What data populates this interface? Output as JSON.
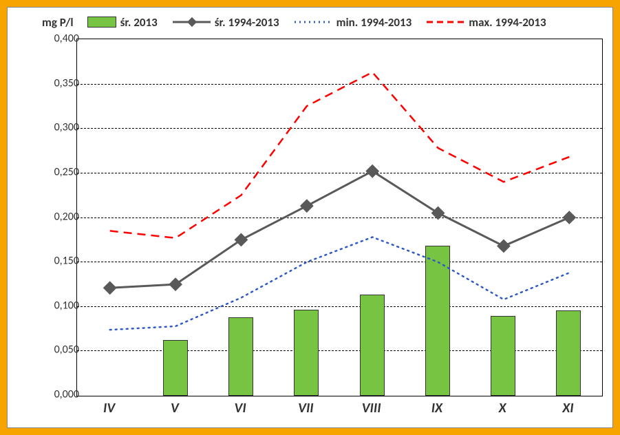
{
  "chart": {
    "type": "bar+lines",
    "background_color": "#ffffff",
    "frame_color": "#f7a400",
    "plot_border_color": "#000000",
    "grid_color": "#000000",
    "ylabel": "mg P/l",
    "ylabel_fontsize": 17,
    "ylim": [
      0.0,
      0.4
    ],
    "ytick_step": 0.05,
    "yticks": [
      "0,000",
      "0,050",
      "0,100",
      "0,150",
      "0,200",
      "0,250",
      "0,300",
      "0,350",
      "0,400"
    ],
    "categories": [
      "IV",
      "V",
      "VI",
      "VII",
      "VIII",
      "IX",
      "X",
      "XI"
    ],
    "xtick_fontsize": 20,
    "ytick_fontsize": 16,
    "legend": {
      "items": [
        {
          "key": "bar2013",
          "label": "śr. 2013",
          "type": "bar",
          "color": "#77c342"
        },
        {
          "key": "avg",
          "label": "śr. 1994-2013",
          "type": "line-marker",
          "color": "#595959"
        },
        {
          "key": "min",
          "label": "min. 1994-2013",
          "type": "line-dotted",
          "color": "#2f5ac7"
        },
        {
          "key": "max",
          "label": "max. 1994-2013",
          "type": "line-dashed",
          "color": "#ff0000"
        }
      ]
    },
    "series": {
      "bar2013": {
        "label": "śr. 2013",
        "color": "#77c342",
        "border_color": "#333333",
        "bar_width_fraction": 0.38,
        "values": [
          null,
          0.063,
          0.088,
          0.097,
          0.114,
          0.169,
          0.09,
          0.096
        ]
      },
      "avg": {
        "label": "śr. 1994-2013",
        "color": "#595959",
        "line_width": 3,
        "marker": "diamond",
        "marker_size": 7,
        "values": [
          0.121,
          0.125,
          0.175,
          0.213,
          0.252,
          0.205,
          0.168,
          0.2
        ]
      },
      "min": {
        "label": "min. 1994-2013",
        "color": "#2f5ac7",
        "line_width": 2.5,
        "dash": "dotted",
        "values": [
          0.074,
          0.078,
          0.11,
          0.15,
          0.178,
          0.15,
          0.108,
          0.138
        ]
      },
      "max": {
        "label": "max. 1994-2013",
        "color": "#ff0000",
        "line_width": 2.5,
        "dash": "dashed",
        "values": [
          0.185,
          0.177,
          0.225,
          0.325,
          0.363,
          0.278,
          0.24,
          0.268
        ]
      }
    }
  }
}
